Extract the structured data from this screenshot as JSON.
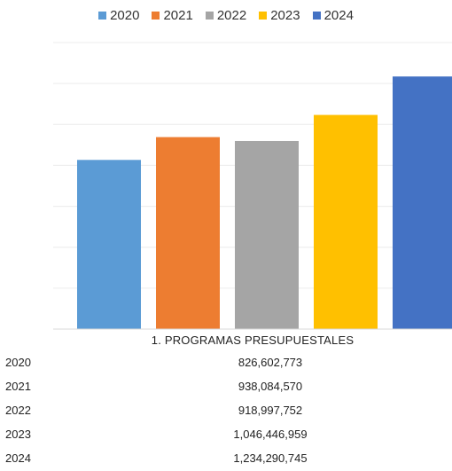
{
  "chart_data": {
    "type": "bar",
    "category": "1. PROGRAMAS PRESUPUESTALES",
    "series": [
      {
        "name": "2020",
        "value": 826602773,
        "color": "#5B9BD5"
      },
      {
        "name": "2021",
        "value": 938084570,
        "color": "#ED7D31"
      },
      {
        "name": "2022",
        "value": 918997752,
        "color": "#A5A5A5"
      },
      {
        "name": "2023",
        "value": 1046446959,
        "color": "#FFC000"
      },
      {
        "name": "2024",
        "value": 1234290745,
        "color": "#4472C4"
      }
    ],
    "ylim": [
      0,
      1400000000
    ],
    "grid": true,
    "legend_position": "top"
  },
  "table": {
    "rows": [
      {
        "year": "2020",
        "value": "826,602,773"
      },
      {
        "year": "2021",
        "value": "938,084,570"
      },
      {
        "year": "2022",
        "value": "918,997,752"
      },
      {
        "year": "2023",
        "value": "1,046,446,959"
      },
      {
        "year": "2024",
        "value": "1,234,290,745"
      }
    ]
  }
}
